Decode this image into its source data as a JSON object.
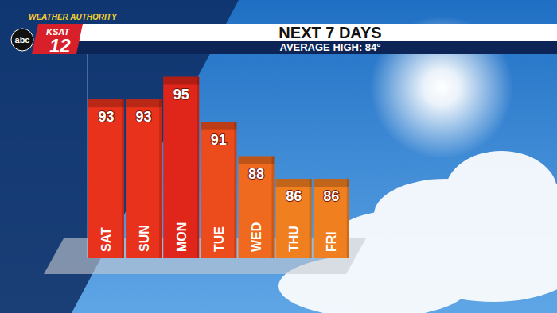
{
  "chart_data": {
    "type": "bar",
    "title": "NEXT 7 DAYS",
    "subtitle": "AVERAGE HIGH: 84°",
    "annotations": [
      "WEATHER AUTHORITY",
      "KSAT",
      "12",
      "abc"
    ],
    "categories": [
      "SAT",
      "SUN",
      "MON",
      "TUE",
      "WED",
      "THU",
      "FRI"
    ],
    "values": [
      93,
      93,
      95,
      91,
      88,
      86,
      86
    ],
    "colors": [
      "#e8321c",
      "#e8321c",
      "#e0261a",
      "#ec4c1c",
      "#ef6a1e",
      "#f07f20",
      "#f07f20"
    ],
    "ylim": [
      79,
      97
    ],
    "yticks": [],
    "data_labels": true,
    "tick_labels": false,
    "grid": false
  }
}
